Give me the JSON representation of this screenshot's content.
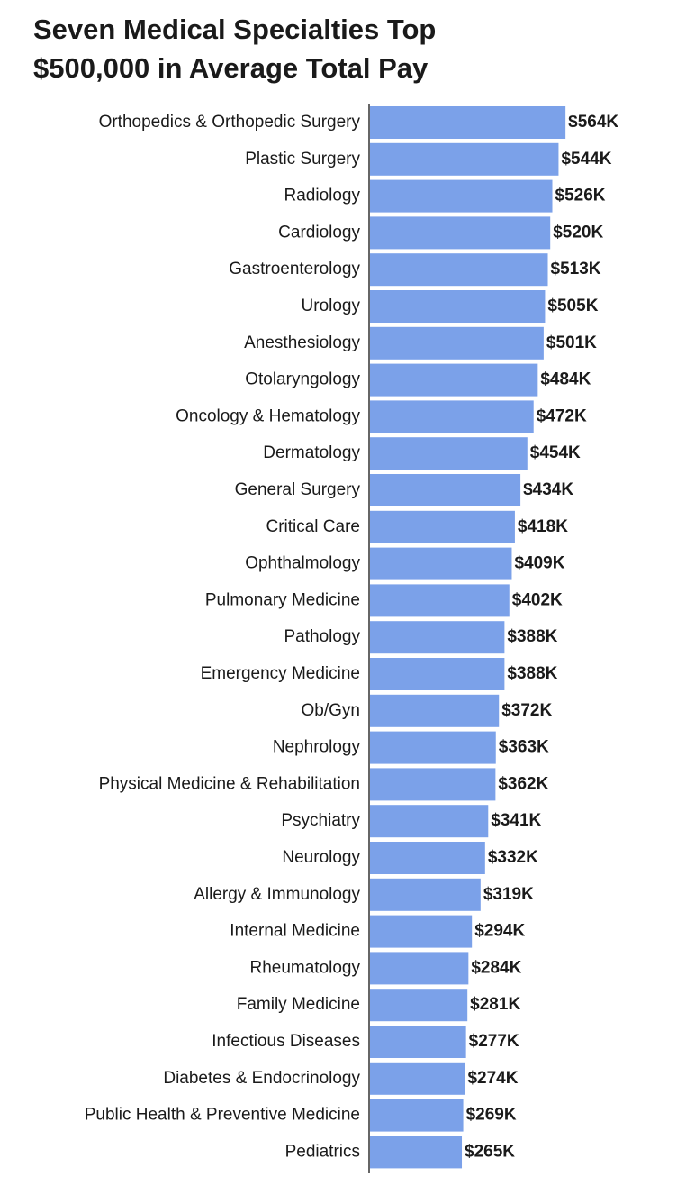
{
  "chart_data": {
    "type": "bar",
    "orientation": "horizontal",
    "title": [
      "Seven Medical Specialties Top",
      "$500,000 in Average Total Pay"
    ],
    "categories": [
      "Orthopedics & Orthopedic Surgery",
      "Plastic Surgery",
      "Radiology",
      "Cardiology",
      "Gastroenterology",
      "Urology",
      "Anesthesiology",
      "Otolaryngology",
      "Oncology & Hematology",
      "Dermatology",
      "General Surgery",
      "Critical Care",
      "Ophthalmology",
      "Pulmonary Medicine",
      "Pathology",
      "Emergency Medicine",
      "Ob/Gyn",
      "Nephrology",
      "Physical Medicine & Rehabilitation",
      "Psychiatry",
      "Neurology",
      "Allergy & Immunology",
      "Internal Medicine",
      "Rheumatology",
      "Family Medicine",
      "Infectious Diseases",
      "Diabetes & Endocrinology",
      "Public Health & Preventive Medicine",
      "Pediatrics"
    ],
    "values": [
      564,
      544,
      526,
      520,
      513,
      505,
      501,
      484,
      472,
      454,
      434,
      418,
      409,
      402,
      388,
      388,
      372,
      363,
      362,
      341,
      332,
      319,
      294,
      284,
      281,
      277,
      274,
      269,
      265
    ],
    "value_labels": [
      "$564K",
      "$544K",
      "$526K",
      "$520K",
      "$513K",
      "$505K",
      "$501K",
      "$484K",
      "$472K",
      "$454K",
      "$434K",
      "$418K",
      "$409K",
      "$402K",
      "$388K",
      "$388K",
      "$372K",
      "$363K",
      "$362K",
      "$341K",
      "$332K",
      "$319K",
      "$294K",
      "$284K",
      "$281K",
      "$277K",
      "$274K",
      "$269K",
      "$265K"
    ],
    "color": "#7ba1e9"
  }
}
